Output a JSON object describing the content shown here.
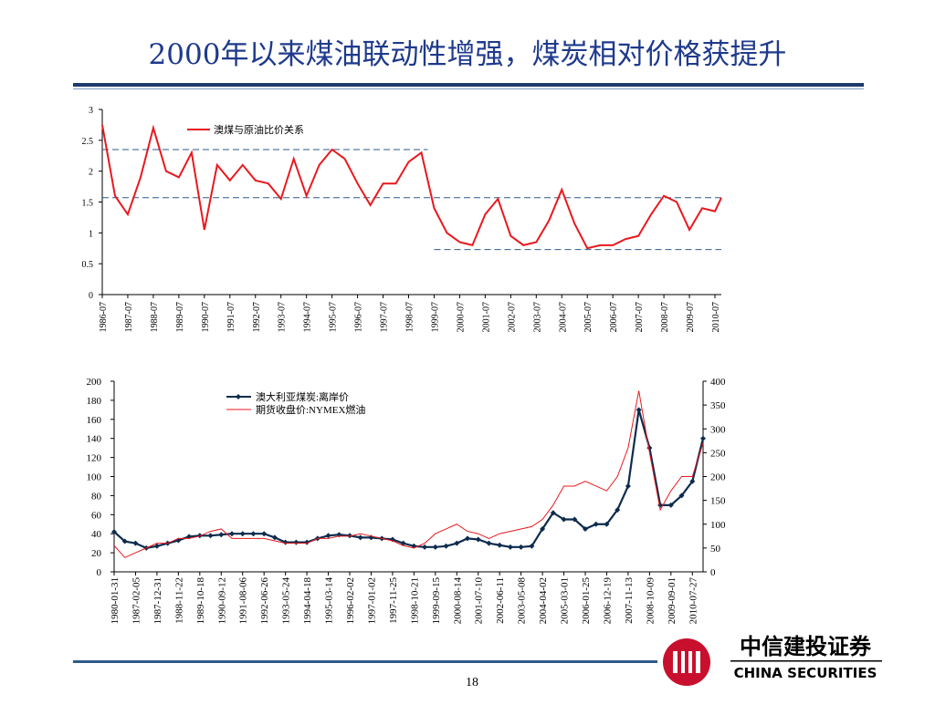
{
  "title": "2000年以来煤油联动性增强，煤炭相对价格获提升",
  "page_number": "18",
  "logo": {
    "cn": "中信建投证券",
    "en": "CHINA SECURITIES"
  },
  "chart_data": [
    {
      "type": "line",
      "x": [
        "1986-07",
        "1987-01",
        "1987-07",
        "1988-01",
        "1988-07",
        "1989-01",
        "1989-07",
        "1990-01",
        "1990-07",
        "1991-01",
        "1991-07",
        "1992-01",
        "1992-07",
        "1993-01",
        "1993-07",
        "1994-01",
        "1994-07",
        "1995-01",
        "1995-07",
        "1996-01",
        "1996-07",
        "1997-01",
        "1997-07",
        "1998-01",
        "1998-07",
        "1999-01",
        "1999-07",
        "2000-01",
        "2000-07",
        "2001-01",
        "2001-07",
        "2002-01",
        "2002-07",
        "2003-01",
        "2003-07",
        "2004-01",
        "2004-07",
        "2005-01",
        "2005-07",
        "2006-01",
        "2006-07",
        "2007-01",
        "2007-07",
        "2008-01",
        "2008-07",
        "2009-01",
        "2009-07",
        "2010-01",
        "2010-07",
        "2010-10"
      ],
      "series": [
        {
          "name": "澳煤与原油比价关系",
          "color": "#e8191e",
          "values": [
            2.75,
            1.6,
            1.3,
            1.9,
            2.7,
            2.0,
            1.9,
            2.3,
            1.05,
            2.1,
            1.85,
            2.1,
            1.85,
            1.8,
            1.55,
            2.2,
            1.6,
            2.1,
            2.35,
            2.2,
            1.8,
            1.45,
            1.8,
            1.8,
            2.15,
            2.3,
            1.4,
            1.0,
            0.85,
            0.8,
            1.3,
            1.55,
            0.95,
            0.8,
            0.85,
            1.2,
            1.7,
            1.15,
            0.75,
            0.8,
            0.8,
            0.9,
            0.95,
            1.3,
            1.6,
            1.5,
            1.05,
            1.4,
            1.35,
            1.57
          ]
        }
      ],
      "xlim": [
        "1986-07",
        "2010-10"
      ],
      "xticks": [
        "1986-07",
        "1987-07",
        "1988-07",
        "1989-07",
        "1990-07",
        "1991-07",
        "1992-07",
        "1993-07",
        "1994-07",
        "1995-07",
        "1996-07",
        "1997-07",
        "1998-07",
        "1999-07",
        "2000-07",
        "2001-07",
        "2002-07",
        "2003-07",
        "2004-07",
        "2005-07",
        "2006-07",
        "2007-07",
        "2008-07",
        "2009-07",
        "2010-07"
      ],
      "ylim": [
        0,
        3
      ],
      "yticks": [
        0,
        0.5,
        1,
        1.5,
        2,
        2.5,
        3
      ],
      "reference_lines": [
        {
          "value": 2.35,
          "from": "1986-07",
          "to": "1999-04",
          "color": "#2e5b8a"
        },
        {
          "value": 1.57,
          "from": "1986-07",
          "to": "2010-10",
          "color": "#2e5b8a"
        },
        {
          "value": 0.73,
          "from": "1999-07",
          "to": "2010-10",
          "color": "#2e5b8a"
        }
      ],
      "legend": "top-left"
    },
    {
      "type": "line",
      "categories": [
        "1980-01-31",
        null,
        "1987-02-05",
        null,
        "1987-12-31",
        null,
        "1988-11-22",
        null,
        "1989-10-18",
        null,
        "1990-09-12",
        null,
        "1991-08-06",
        null,
        "1992-06-26",
        null,
        "1993-05-24",
        null,
        "1994-04-18",
        null,
        "1995-03-14",
        null,
        "1996-02-02",
        null,
        "1997-01-02",
        null,
        "1997-11-25",
        null,
        "1998-10-21",
        null,
        "1999-09-15",
        null,
        "2000-08-14",
        null,
        "2001-07-10",
        null,
        "2002-06-11",
        null,
        "2003-05-08",
        null,
        "2004-04-02",
        null,
        "2005-03-01",
        null,
        "2006-01-25",
        null,
        "2006-12-19",
        null,
        "2007-11-13",
        null,
        "2008-10-09",
        null,
        "2009-09-01",
        null,
        "2010-07-27",
        null
      ],
      "series": [
        {
          "name": "澳大利亚煤炭:离岸价",
          "color": "#0d2c4e",
          "marker": "diamond",
          "values": [
            42,
            32,
            30,
            25,
            27,
            30,
            33,
            37,
            38,
            38,
            39,
            40,
            40,
            40,
            40,
            36,
            31,
            31,
            31,
            35,
            38,
            39,
            38,
            36,
            36,
            35,
            34,
            30,
            27,
            26,
            26,
            27,
            30,
            35,
            34,
            30,
            28,
            26,
            26,
            27,
            45,
            62,
            55,
            55,
            45,
            50,
            50,
            65,
            90,
            170,
            130,
            70,
            70,
            80,
            95,
            140
          ]
        },
        {
          "name": "期货收盘价:NYMEX燃油",
          "color": "#e8191e",
          "axis": "y2",
          "values": [
            55,
            30,
            40,
            50,
            60,
            60,
            70,
            70,
            75,
            85,
            90,
            70,
            70,
            70,
            70,
            65,
            60,
            60,
            60,
            70,
            70,
            75,
            75,
            80,
            75,
            70,
            65,
            55,
            50,
            60,
            80,
            90,
            100,
            85,
            80,
            70,
            80,
            85,
            90,
            95,
            110,
            140,
            180,
            180,
            190,
            180,
            170,
            200,
            260,
            380,
            250,
            130,
            170,
            200,
            200,
            270
          ]
        }
      ],
      "ylim": [
        0,
        200
      ],
      "yticks": [
        0,
        20,
        40,
        60,
        80,
        100,
        120,
        140,
        160,
        180,
        200
      ],
      "y2lim": [
        0,
        400
      ],
      "y2ticks": [
        0,
        50,
        100,
        150,
        200,
        250,
        300,
        350,
        400
      ],
      "legend": "top-left"
    }
  ]
}
